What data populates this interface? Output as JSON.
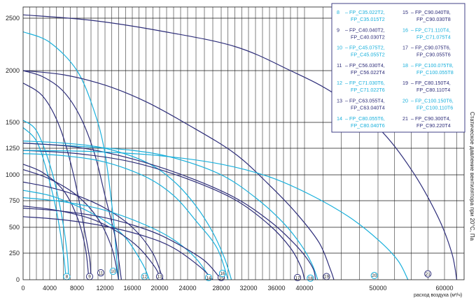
{
  "chart_data": {
    "type": "line",
    "xlabel": "расход воздуха (м³/ч)",
    "ylabel": "Статическое давление вентилятора при 20°С, Па",
    "xlim": [
      0,
      64000
    ],
    "ylim": [
      0,
      2600
    ],
    "x_ticks": [
      0,
      4000,
      8000,
      12000,
      16000,
      20000,
      24000,
      28000,
      32000,
      36000,
      40000,
      50000,
      60000
    ],
    "y_ticks": [
      0,
      250,
      500,
      750,
      1000,
      1250,
      1500,
      2000,
      2500
    ],
    "colors": {
      "dark": "#2e2e7a",
      "light": "#19b0dc"
    },
    "legend": {
      "position": "top-right",
      "entries": [
        {
          "id": "8",
          "lines": [
            "FP_C35.022T2,",
            "FP_C35.015T2"
          ],
          "color": "light"
        },
        {
          "id": "9",
          "lines": [
            "FP_C40.040T2,",
            "FP_C40.030T2"
          ],
          "color": "dark"
        },
        {
          "id": "10",
          "lines": [
            "FP_C45.075T2,",
            "FP_C45.055T2"
          ],
          "color": "light"
        },
        {
          "id": "11",
          "lines": [
            "FP_C56.030T4,",
            "FP_C56.022T4"
          ],
          "color": "dark"
        },
        {
          "id": "12",
          "lines": [
            "FP_C71.030T6,",
            "FP_C71.022T6"
          ],
          "color": "light"
        },
        {
          "id": "13",
          "lines": [
            "FP_C63.055T4,",
            "FP_C63.040T4"
          ],
          "color": "dark"
        },
        {
          "id": "14",
          "lines": [
            "FP_C80.055T6,",
            "FP_C80.040T6"
          ],
          "color": "light"
        },
        {
          "id": "15",
          "lines": [
            "FP_C90.040T8,",
            "FP_C90.030T8"
          ],
          "color": "dark"
        },
        {
          "id": "16",
          "lines": [
            "FP_C71.110T4,",
            "FP_C71.075T4"
          ],
          "color": "light"
        },
        {
          "id": "17",
          "lines": [
            "FP_C90.075T6,",
            "FP_C90.055T6"
          ],
          "color": "dark"
        },
        {
          "id": "18",
          "lines": [
            "FP_C100.075T8,",
            "FP_C100.055T8"
          ],
          "color": "light"
        },
        {
          "id": "19",
          "lines": [
            "FP_C80.150T4,",
            "FP_C80.110T4"
          ],
          "color": "dark"
        },
        {
          "id": "20",
          "lines": [
            "FP_C100.150T6,",
            "FP_C100.110T6"
          ],
          "color": "light"
        },
        {
          "id": "21",
          "lines": [
            "FP_C90.300T4,",
            "FP_C90.220T4"
          ],
          "color": "dark"
        }
      ]
    },
    "series": [
      {
        "id": "8",
        "color": "light",
        "label_at": [
          6500,
          30
        ],
        "points": [
          [
            0,
            1520
          ],
          [
            2000,
            1420
          ],
          [
            4000,
            1100
          ],
          [
            5500,
            700
          ],
          [
            6500,
            280
          ],
          [
            6800,
            0
          ]
        ]
      },
      {
        "id": "8",
        "color": "light",
        "points": [
          [
            0,
            1450
          ],
          [
            2000,
            1320
          ],
          [
            3500,
            1050
          ],
          [
            5000,
            650
          ],
          [
            6000,
            250
          ],
          [
            6400,
            0
          ]
        ]
      },
      {
        "id": "9",
        "color": "dark",
        "label_at": [
          9800,
          30
        ],
        "points": [
          [
            0,
            1880
          ],
          [
            3000,
            1750
          ],
          [
            5500,
            1450
          ],
          [
            7500,
            1000
          ],
          [
            9000,
            500
          ],
          [
            9800,
            200
          ],
          [
            10000,
            0
          ]
        ]
      },
      {
        "id": "9",
        "color": "dark",
        "points": [
          [
            0,
            1100
          ],
          [
            3000,
            1020
          ],
          [
            6000,
            850
          ],
          [
            8000,
            600
          ],
          [
            9200,
            300
          ],
          [
            9700,
            0
          ]
        ]
      },
      {
        "id": "10",
        "color": "light",
        "label_at": [
          13200,
          80
        ],
        "points": [
          [
            0,
            2370
          ],
          [
            4000,
            2270
          ],
          [
            8000,
            2000
          ],
          [
            10500,
            1600
          ],
          [
            12000,
            1200
          ],
          [
            13200,
            600
          ],
          [
            13700,
            200
          ],
          [
            14000,
            0
          ]
        ]
      },
      {
        "id": "11",
        "color": "dark",
        "label_at": [
          11400,
          65
        ],
        "points": [
          [
            0,
            2000
          ],
          [
            3000,
            1940
          ],
          [
            6000,
            1800
          ],
          [
            8500,
            1550
          ],
          [
            10500,
            1200
          ],
          [
            12000,
            800
          ],
          [
            13500,
            400
          ],
          [
            14400,
            0
          ]
        ]
      },
      {
        "id": "11",
        "color": "dark",
        "points": [
          [
            0,
            1050
          ],
          [
            4000,
            960
          ],
          [
            8000,
            800
          ],
          [
            11000,
            580
          ],
          [
            13000,
            300
          ],
          [
            14000,
            0
          ]
        ]
      },
      {
        "id": "12",
        "color": "light",
        "label_at": [
          17800,
          30
        ],
        "points": [
          [
            0,
            850
          ],
          [
            4000,
            800
          ],
          [
            8000,
            700
          ],
          [
            12000,
            560
          ],
          [
            15000,
            400
          ],
          [
            17500,
            150
          ],
          [
            18500,
            0
          ]
        ]
      },
      {
        "id": "13",
        "color": "dark",
        "label_at": [
          20000,
          30
        ],
        "points": [
          [
            0,
            930
          ],
          [
            4000,
            880
          ],
          [
            8000,
            800
          ],
          [
            12000,
            680
          ],
          [
            16000,
            500
          ],
          [
            19000,
            250
          ],
          [
            20500,
            0
          ]
        ]
      },
      {
        "id": "13",
        "color": "dark",
        "points": [
          [
            0,
            700
          ],
          [
            5000,
            660
          ],
          [
            10000,
            580
          ],
          [
            14000,
            450
          ],
          [
            17000,
            300
          ],
          [
            19500,
            100
          ],
          [
            20000,
            0
          ]
        ]
      },
      {
        "id": "14",
        "color": "light",
        "label_at": [
          26500,
          20
        ],
        "points": [
          [
            0,
            780
          ],
          [
            6000,
            740
          ],
          [
            12000,
            660
          ],
          [
            18000,
            520
          ],
          [
            22000,
            380
          ],
          [
            25000,
            200
          ],
          [
            26800,
            0
          ]
        ]
      },
      {
        "id": "15",
        "color": "dark",
        "label_at": [
          28000,
          20
        ],
        "points": [
          [
            0,
            680
          ],
          [
            6000,
            650
          ],
          [
            12000,
            590
          ],
          [
            18000,
            480
          ],
          [
            22000,
            360
          ],
          [
            26000,
            180
          ],
          [
            28000,
            0
          ]
        ]
      },
      {
        "id": "15",
        "color": "dark",
        "points": [
          [
            0,
            600
          ],
          [
            6000,
            570
          ],
          [
            12000,
            510
          ],
          [
            18000,
            410
          ],
          [
            22000,
            300
          ],
          [
            25500,
            120
          ],
          [
            27000,
            0
          ]
        ]
      },
      {
        "id": "16",
        "color": "light",
        "label_at": [
          28200,
          60
        ],
        "points": [
          [
            0,
            1320
          ],
          [
            6000,
            1300
          ],
          [
            12000,
            1250
          ],
          [
            18000,
            1120
          ],
          [
            22000,
            940
          ],
          [
            25000,
            700
          ],
          [
            27000,
            450
          ],
          [
            28500,
            200
          ],
          [
            29500,
            0
          ]
        ]
      },
      {
        "id": "16",
        "color": "light",
        "points": [
          [
            0,
            1200
          ],
          [
            6000,
            1180
          ],
          [
            12000,
            1120
          ],
          [
            18000,
            980
          ],
          [
            22000,
            800
          ],
          [
            25000,
            560
          ],
          [
            27500,
            300
          ],
          [
            29000,
            0
          ]
        ]
      },
      {
        "id": "17",
        "color": "dark",
        "label_at": [
          39000,
          20
        ],
        "points": [
          [
            0,
            1230
          ],
          [
            8000,
            1200
          ],
          [
            16000,
            1120
          ],
          [
            24000,
            960
          ],
          [
            30000,
            760
          ],
          [
            35000,
            520
          ],
          [
            38000,
            300
          ],
          [
            39500,
            120
          ],
          [
            40000,
            0
          ]
        ]
      },
      {
        "id": "18",
        "color": "light",
        "label_at": [
          40800,
          15
        ],
        "points": [
          [
            0,
            1300
          ],
          [
            8000,
            1270
          ],
          [
            16000,
            1230
          ],
          [
            22000,
            1160
          ],
          [
            28000,
            1000
          ],
          [
            33000,
            780
          ],
          [
            37000,
            540
          ],
          [
            39500,
            330
          ],
          [
            41000,
            150
          ],
          [
            41800,
            0
          ]
        ]
      },
      {
        "id": "19",
        "color": "dark",
        "label_at": [
          43000,
          30
        ],
        "points": [
          [
            0,
            2000
          ],
          [
            6000,
            1960
          ],
          [
            12000,
            1860
          ],
          [
            18000,
            1700
          ],
          [
            24000,
            1480
          ],
          [
            30000,
            1200
          ],
          [
            35000,
            900
          ],
          [
            39000,
            620
          ],
          [
            42000,
            350
          ],
          [
            43500,
            100
          ],
          [
            44000,
            0
          ]
        ]
      },
      {
        "id": "19",
        "color": "dark",
        "points": [
          [
            0,
            1300
          ],
          [
            8000,
            1260
          ],
          [
            16000,
            1150
          ],
          [
            24000,
            980
          ],
          [
            30000,
            780
          ],
          [
            35000,
            560
          ],
          [
            38000,
            380
          ],
          [
            40000,
            230
          ],
          [
            41200,
            100
          ],
          [
            41500,
            0
          ]
        ]
      },
      {
        "id": "20",
        "color": "light",
        "label_at": [
          49500,
          40
        ],
        "points": [
          [
            0,
            1230
          ],
          [
            10000,
            1220
          ],
          [
            20000,
            1180
          ],
          [
            28000,
            1100
          ],
          [
            35000,
            980
          ],
          [
            41000,
            800
          ],
          [
            46000,
            600
          ],
          [
            50000,
            380
          ],
          [
            53000,
            180
          ],
          [
            54500,
            0
          ]
        ]
      },
      {
        "id": "21",
        "color": "dark",
        "label_at": [
          57500,
          55
        ],
        "points": [
          [
            0,
            2530
          ],
          [
            10000,
            2480
          ],
          [
            20000,
            2380
          ],
          [
            30000,
            2230
          ],
          [
            38000,
            2000
          ],
          [
            44000,
            1780
          ],
          [
            50000,
            1450
          ],
          [
            55000,
            1050
          ],
          [
            59000,
            600
          ],
          [
            61500,
            250
          ],
          [
            62500,
            0
          ]
        ]
      }
    ]
  }
}
